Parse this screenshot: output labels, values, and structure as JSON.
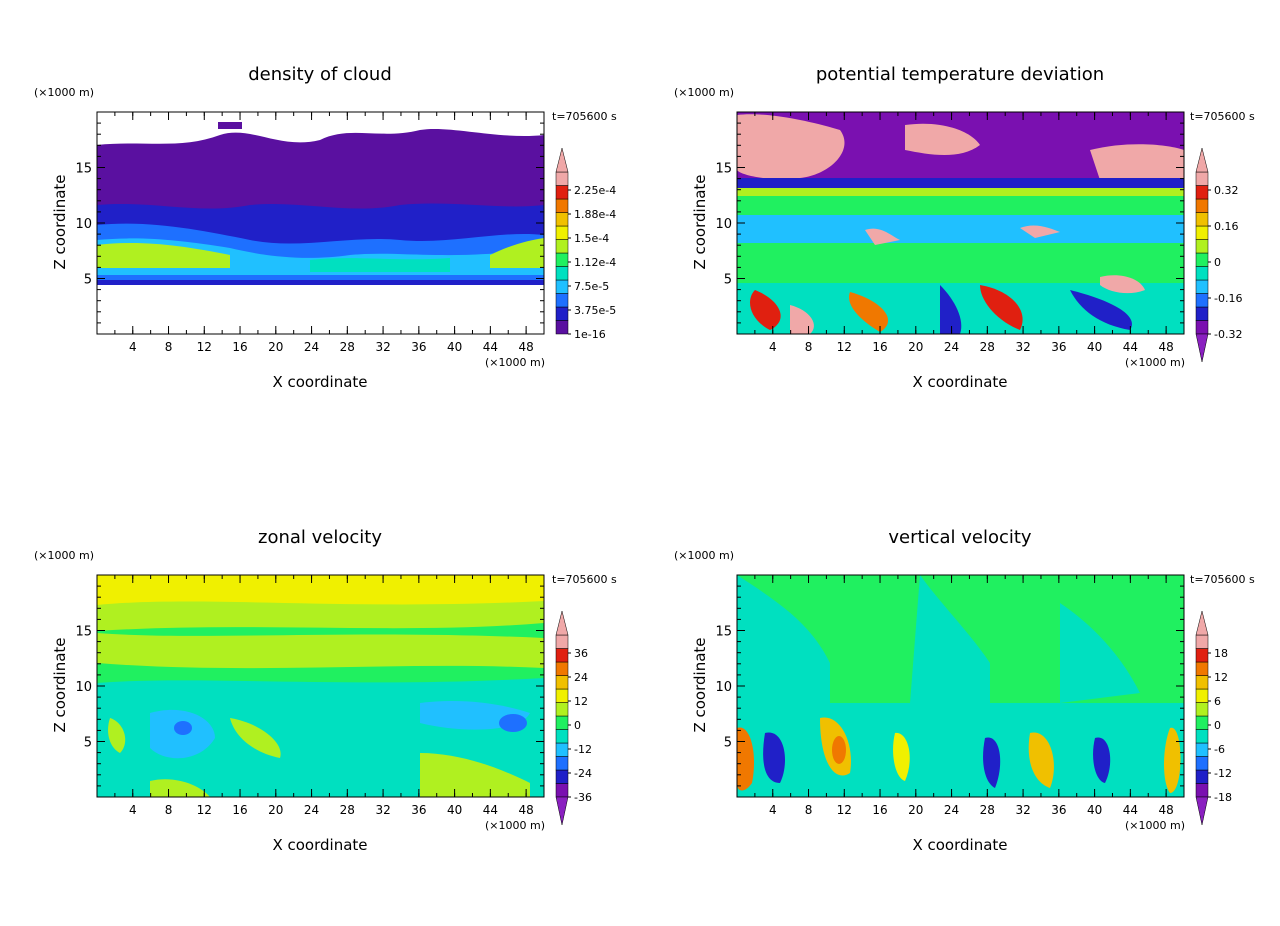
{
  "chart_data": [
    {
      "type": "heatmap",
      "title": "density of cloud",
      "xlabel": "X coordinate",
      "ylabel": "Z coordinate",
      "x_unit": "(×1000 m)",
      "y_unit": "(×1000 m)",
      "time_label": "t=705600 s",
      "xlim": [
        0,
        50
      ],
      "ylim": [
        0,
        20
      ],
      "x_ticks": [
        "4",
        "8",
        "12",
        "16",
        "20",
        "24",
        "28",
        "32",
        "36",
        "40",
        "44",
        "48"
      ],
      "y_ticks": [
        "5",
        "10",
        "15"
      ],
      "colorbar": {
        "labels": [
          "2.25e-4",
          "1.88e-4",
          "1.5e-4",
          "1.12e-4",
          "7.5e-5",
          "3.75e-5",
          "1e-16"
        ],
        "colors": [
          "#5a10a0",
          "#2020c8",
          "#1e70ff",
          "#20c0ff",
          "#00e0c0",
          "#20f060",
          "#b0f020",
          "#f0f000",
          "#f0c000",
          "#f07800",
          "#e02010",
          "#f0a8a8"
        ],
        "overflow_arrows": {
          "low": false,
          "high": true
        }
      }
    },
    {
      "type": "heatmap",
      "title": "potential temperature deviation",
      "xlabel": "X coordinate",
      "ylabel": "Z coordinate",
      "x_unit": "(×1000 m)",
      "y_unit": "(×1000 m)",
      "time_label": "t=705600 s",
      "xlim": [
        0,
        50
      ],
      "ylim": [
        0,
        20
      ],
      "x_ticks": [
        "4",
        "8",
        "12",
        "16",
        "20",
        "24",
        "28",
        "32",
        "36",
        "40",
        "44",
        "48"
      ],
      "y_ticks": [
        "5",
        "10",
        "15"
      ],
      "colorbar": {
        "labels": [
          "0.32",
          "0.16",
          "0",
          "-0.16",
          "-0.32"
        ],
        "colors": [
          "#7a10b0",
          "#2020c8",
          "#1e70ff",
          "#20c0ff",
          "#00e0c0",
          "#20f060",
          "#b0f020",
          "#f0f000",
          "#f0c000",
          "#f07800",
          "#e02010",
          "#f0a8a8"
        ],
        "overflow_arrows": {
          "low": true,
          "high": true
        }
      }
    },
    {
      "type": "heatmap",
      "title": "zonal velocity",
      "xlabel": "X coordinate",
      "ylabel": "Z coordinate",
      "x_unit": "(×1000 m)",
      "y_unit": "(×1000 m)",
      "time_label": "t=705600 s",
      "xlim": [
        0,
        50
      ],
      "ylim": [
        0,
        20
      ],
      "x_ticks": [
        "4",
        "8",
        "12",
        "16",
        "20",
        "24",
        "28",
        "32",
        "36",
        "40",
        "44",
        "48"
      ],
      "y_ticks": [
        "5",
        "10",
        "15"
      ],
      "colorbar": {
        "labels": [
          "36",
          "24",
          "12",
          "0",
          "-12",
          "-24",
          "-36"
        ],
        "colors": [
          "#7a10b0",
          "#2020c8",
          "#1e70ff",
          "#20c0ff",
          "#00e0c0",
          "#20f060",
          "#b0f020",
          "#f0f000",
          "#f0c000",
          "#f07800",
          "#e02010",
          "#f0a8a8"
        ],
        "overflow_arrows": {
          "low": true,
          "high": true
        }
      }
    },
    {
      "type": "heatmap",
      "title": "vertical velocity",
      "xlabel": "X coordinate",
      "ylabel": "Z coordinate",
      "x_unit": "(×1000 m)",
      "y_unit": "(×1000 m)",
      "time_label": "t=705600 s",
      "xlim": [
        0,
        50
      ],
      "ylim": [
        0,
        20
      ],
      "x_ticks": [
        "4",
        "8",
        "12",
        "16",
        "20",
        "24",
        "28",
        "32",
        "36",
        "40",
        "44",
        "48"
      ],
      "y_ticks": [
        "5",
        "10",
        "15"
      ],
      "colorbar": {
        "labels": [
          "18",
          "12",
          "6",
          "0",
          "-6",
          "-12",
          "-18"
        ],
        "colors": [
          "#7a10b0",
          "#2020c8",
          "#1e70ff",
          "#20c0ff",
          "#00e0c0",
          "#20f060",
          "#b0f020",
          "#f0f000",
          "#f0c000",
          "#f07800",
          "#e02010",
          "#f0a8a8"
        ],
        "overflow_arrows": {
          "low": true,
          "high": true
        }
      }
    }
  ]
}
